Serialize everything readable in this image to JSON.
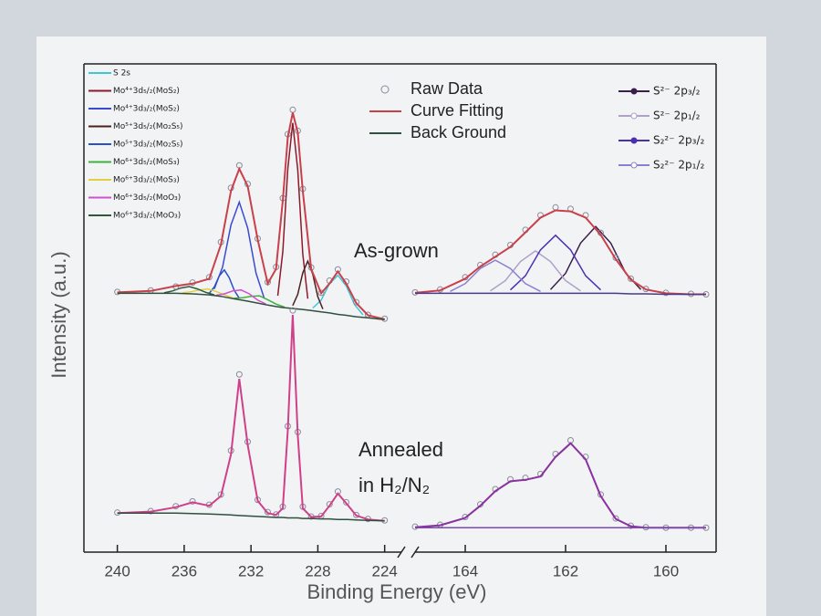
{
  "chart_data": [
    {
      "type": "line",
      "xlabel": "Binding Energy (eV)",
      "ylabel": "Intensity (a.u.)",
      "annotations": [
        "As-grown",
        "Annealed",
        "in H₂/N₂"
      ],
      "xlim": [
        242,
        223
      ],
      "xticks": [
        240,
        236,
        232,
        228,
        224
      ],
      "ylim": [
        0,
        100
      ],
      "legend": "upper left",
      "x": [
        240,
        238,
        236.5,
        235.5,
        234.5,
        233.8,
        233.2,
        232.7,
        232.2,
        231.6,
        231,
        230.5,
        230.1,
        229.8,
        229.5,
        229.2,
        228.9,
        228.4,
        227.8,
        227.3,
        226.8,
        226.3,
        225.7,
        225,
        224
      ],
      "series": [
        {
          "name": "S 2s",
          "kind": "component",
          "color": "#3cc8d8",
          "x": [
            228.3,
            227.8,
            227.3,
            226.8,
            226.3,
            225.8,
            225.3
          ],
          "values": [
            50,
            51.6,
            55,
            56.7,
            54.5,
            50.7,
            48.6
          ]
        },
        {
          "name": "Mo⁴⁺3d₅/₂(MoS₂)",
          "kind": "component",
          "color": "#8b1a2a",
          "x": [
            230.4,
            230.1,
            229.8,
            229.5,
            229.2,
            228.9,
            228.6
          ],
          "values": [
            52.5,
            61.5,
            78.5,
            87.9,
            78.3,
            61.1,
            51.9
          ]
        },
        {
          "name": "Mo⁴⁺3d₃/₂(MoS₂)",
          "kind": "component",
          "color": "#3a4ad0",
          "x": [
            234.2,
            233.7,
            233.2,
            232.7,
            232.2,
            231.7,
            231.2
          ],
          "values": [
            53.9,
            58.4,
            67,
            71.7,
            66.4,
            57.1,
            51.9
          ]
        },
        {
          "name": "Mo⁵⁺3d₅/₂(Mo₂S₅)",
          "kind": "component",
          "color": "#4a2020",
          "x": [
            229.5,
            229.2,
            228.9,
            228.6,
            228.3,
            228.0,
            227.7
          ],
          "values": [
            50.5,
            52.8,
            57.2,
            59.6,
            56.9,
            52.3,
            49.8
          ]
        },
        {
          "name": "Mo⁵⁺3d₃/₂(Mo₂S₅)",
          "kind": "component",
          "color": "#2a50c8",
          "x": [
            234.5,
            234.2,
            233.9,
            233.6,
            233.3,
            233.0,
            232.7
          ],
          "values": [
            53,
            54.3,
            56.6,
            57.8,
            56.2,
            53.6,
            52
          ]
        },
        {
          "name": "Mo⁶⁺3d₅/₂(MoS₃)",
          "kind": "component",
          "color": "#40b040",
          "x": [
            233,
            232.5,
            232,
            231.5,
            231,
            230.5,
            230
          ],
          "values": [
            52,
            52.1,
            52.4,
            52.5,
            51.7,
            50.8,
            50.2
          ]
        },
        {
          "name": "Mo⁶⁺3d₃/₂(MoS₃)",
          "kind": "component",
          "color": "#e0d040",
          "x": [
            236.1,
            235.6,
            235.1,
            234.6,
            234.1,
            233.6,
            233.1
          ],
          "values": [
            53.1,
            53.3,
            53.7,
            53.9,
            53.4,
            52.7,
            52.1
          ]
        },
        {
          "name": "Mo⁶⁺3d₅/₂(MoO₃)",
          "kind": "component",
          "color": "#d050d0",
          "x": [
            234.1,
            233.6,
            233.1,
            232.6,
            232.1,
            231.6,
            231.1
          ],
          "values": [
            52.6,
            52.9,
            53.5,
            53.7,
            52.9,
            51.6,
            50.8
          ]
        },
        {
          "name": "Mo⁶⁺3d₃/₂(MoO₃)",
          "kind": "component",
          "color": "#2f5a3a",
          "x": [
            237.2,
            236.7,
            236.2,
            235.7,
            235.2,
            234.7,
            234.2
          ],
          "values": [
            53.1,
            53.5,
            54.1,
            54.4,
            53.9,
            53.2,
            52.7
          ]
        },
        {
          "name": "Raw Data",
          "kind": "raw",
          "color": "#8a8a9a",
          "values": [
            53.3,
            53.6,
            54.4,
            55.2,
            56.3,
            63.5,
            74.6,
            79.2,
            75.4,
            64.2,
            55.3,
            58.4,
            72.5,
            85.6,
            90.6,
            86.3,
            74.4,
            58.3,
            53.1,
            55.6,
            57.9,
            55.4,
            51.2,
            48.6,
            47.8
          ]
        },
        {
          "name": "Curve Fitting",
          "kind": "fit",
          "color": "#c8404a",
          "values": [
            53.2,
            53.5,
            54.5,
            55,
            56,
            63,
            74,
            78.5,
            75,
            64,
            55,
            58,
            72,
            85,
            90,
            86,
            74,
            58,
            53,
            55,
            57.5,
            55,
            51,
            48.5,
            47.7
          ]
        },
        {
          "name": "Back Ground",
          "kind": "background",
          "color": "#2f4f3f",
          "values": [
            53,
            53,
            53,
            52.9,
            52.7,
            52.4,
            52,
            51.7,
            51.4,
            51,
            50.6,
            50.3,
            50.1,
            50,
            49.9,
            49.8,
            49.7,
            49.5,
            49.2,
            49,
            48.7,
            48.5,
            48.2,
            48,
            47.6
          ]
        },
        {
          "name": "Raw Data",
          "kind": "raw",
          "color": "#8a8a9a",
          "values": [
            8.1,
            8.4,
            9.4,
            10.4,
            9.7,
            11.8,
            20.8,
            36.4,
            22.6,
            10.7,
            8.2,
            7.7,
            9.3,
            25.8,
            49.5,
            24.6,
            9.3,
            7.3,
            7.4,
            9.8,
            12.4,
            10.2,
            7.6,
            6.8,
            6.5
          ]
        },
        {
          "name": "Curve Fitting",
          "kind": "fit",
          "color": "#d0408a",
          "values": [
            8,
            8.3,
            9.2,
            10.2,
            9.5,
            11.5,
            20,
            35.5,
            22,
            10.5,
            8,
            7.6,
            9,
            25,
            48.6,
            24,
            9,
            7.2,
            7.3,
            9.5,
            12,
            10,
            7.5,
            6.7,
            6.4
          ]
        },
        {
          "name": "Back Ground",
          "kind": "background",
          "color": "#2f4f3f",
          "values": [
            8,
            8,
            8,
            7.9,
            7.8,
            7.7,
            7.6,
            7.5,
            7.4,
            7.3,
            7.2,
            7.1,
            7.1,
            7,
            7,
            7,
            6.9,
            6.9,
            6.8,
            6.8,
            6.7,
            6.7,
            6.6,
            6.5,
            6.4
          ]
        }
      ]
    },
    {
      "type": "line",
      "xlim": [
        165,
        159
      ],
      "xticks": [
        164,
        162,
        160
      ],
      "ylim": [
        0,
        100
      ],
      "legend": "upper right",
      "x": [
        165,
        164.5,
        164,
        163.7,
        163.4,
        163.1,
        162.8,
        162.5,
        162.2,
        161.9,
        161.6,
        161.3,
        161,
        160.7,
        160.4,
        160,
        159.5,
        159.2
      ],
      "series": [
        {
          "name": "S²⁻ 2p₃/₂",
          "kind": "component",
          "color": "#3b1f4a",
          "x": [
            162.3,
            162,
            161.7,
            161.4,
            161.1,
            160.8,
            160.5
          ],
          "values": [
            53.8,
            57.1,
            63.3,
            66.7,
            63.3,
            57.1,
            53.8
          ]
        },
        {
          "name": "S²⁻ 2p₁/₂",
          "kind": "component",
          "color": "#b0a0c8",
          "x": [
            163.5,
            163.2,
            162.9,
            162.6,
            162.3,
            162,
            161.7
          ],
          "values": [
            53.5,
            55.6,
            59.5,
            61.7,
            59.5,
            55.6,
            53.5
          ]
        },
        {
          "name": "S₂²⁻ 2p₃/₂",
          "kind": "component",
          "color": "#4b2fb0",
          "x": [
            163.1,
            162.8,
            162.5,
            162.2,
            161.9,
            161.6,
            161.3
          ],
          "values": [
            53.7,
            56.6,
            61.9,
            64.9,
            61.9,
            56.6,
            53.7
          ]
        },
        {
          "name": "S₂²⁻ 2p₁/₂",
          "kind": "component",
          "color": "#8c7fd0",
          "x": [
            164.3,
            164,
            163.7,
            163.4,
            163.1,
            162.8,
            162.5
          ],
          "values": [
            53.4,
            55,
            58.1,
            59.8,
            58.1,
            55,
            53.4
          ]
        },
        {
          "name": "Raw Data",
          "kind": "raw",
          "color": "#8a8a9a",
          "values": [
            53.2,
            53.8,
            56.3,
            58.8,
            60.9,
            62.9,
            66,
            69,
            70.6,
            70.3,
            69,
            65.4,
            60.3,
            56,
            53.9,
            53.1,
            52.9,
            52.8
          ]
        },
        {
          "name": "Curve Fitting",
          "kind": "fit",
          "color": "#c8404a",
          "values": [
            53.1,
            53.6,
            56,
            58.5,
            60.5,
            62.5,
            65.5,
            68.5,
            70,
            69.8,
            68.5,
            65,
            60,
            55.8,
            53.8,
            53,
            52.8,
            52.8
          ]
        },
        {
          "name": "Back Ground",
          "kind": "background",
          "color": "#4a3a8a",
          "values": [
            53,
            53,
            53,
            53,
            53,
            53,
            53,
            53,
            53,
            53,
            53,
            53,
            53,
            52.9,
            52.9,
            52.8,
            52.8,
            52.8
          ]
        },
        {
          "name": "Raw Data",
          "kind": "raw",
          "color": "#8a8a9a",
          "values": [
            5.2,
            5.6,
            7.2,
            9.8,
            12.9,
            14.9,
            15.2,
            16,
            20.1,
            22.9,
            19.5,
            11.8,
            6.9,
            5.4,
            5.1,
            5,
            5,
            5
          ]
        },
        {
          "name": "Curve Fitting",
          "kind": "fit",
          "color": "#8a30a0",
          "values": [
            5.1,
            5.5,
            7,
            9.5,
            12.5,
            14.5,
            14.8,
            15.5,
            19.5,
            22.3,
            19,
            11.5,
            6.8,
            5.3,
            5,
            5,
            5,
            5
          ]
        },
        {
          "name": "Back Ground",
          "kind": "background",
          "color": "#7a4ab0",
          "values": [
            5,
            5,
            5,
            5,
            5,
            5,
            5,
            5,
            5,
            5,
            5,
            5,
            5,
            5,
            5,
            5,
            5,
            5
          ]
        }
      ]
    }
  ]
}
